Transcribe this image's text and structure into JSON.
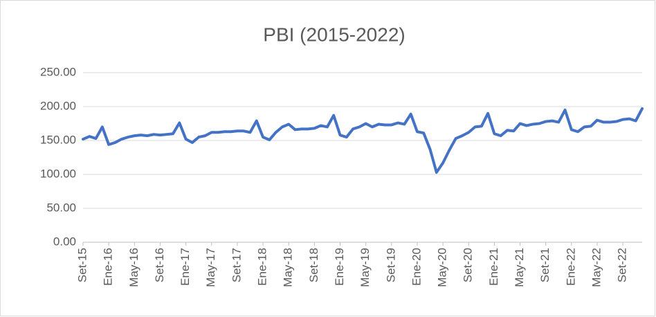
{
  "chart_data": {
    "type": "line",
    "title": "PBI (2015-2022)",
    "categories": [
      "Set-15",
      null,
      null,
      null,
      "Ene-16",
      null,
      null,
      null,
      "May-16",
      null,
      null,
      null,
      "Set-16",
      null,
      null,
      null,
      "Ene-17",
      null,
      null,
      null,
      "May-17",
      null,
      null,
      null,
      "Set-17",
      null,
      null,
      null,
      "Ene-18",
      null,
      null,
      null,
      "May-18",
      null,
      null,
      null,
      "Set-18",
      null,
      null,
      null,
      "Ene-19",
      null,
      null,
      null,
      "May-19",
      null,
      null,
      null,
      "Set-19",
      null,
      null,
      null,
      "Ene-20",
      null,
      null,
      null,
      "May-20",
      null,
      null,
      null,
      "Set-20",
      null,
      null,
      null,
      "Ene-21",
      null,
      null,
      null,
      "May-21",
      null,
      null,
      null,
      "Set-21",
      null,
      null,
      null,
      "Ene-22",
      null,
      null,
      null,
      "May-22",
      null,
      null,
      null,
      "Set-22",
      null,
      null,
      null
    ],
    "values": [
      152,
      156,
      153,
      170,
      144,
      147,
      152,
      155,
      157,
      158,
      157,
      159,
      158,
      159,
      160,
      176,
      152,
      147,
      155,
      157,
      162,
      162,
      163,
      163,
      164,
      164,
      162,
      179,
      155,
      151,
      162,
      170,
      174,
      166,
      167,
      167,
      168,
      172,
      170,
      187,
      158,
      155,
      167,
      170,
      175,
      170,
      174,
      173,
      173,
      176,
      174,
      189,
      163,
      161,
      137,
      103,
      117,
      136,
      153,
      157,
      162,
      170,
      171,
      190,
      160,
      157,
      165,
      164,
      175,
      172,
      174,
      175,
      178,
      179,
      177,
      195,
      166,
      163,
      170,
      171,
      180,
      177,
      177,
      178,
      181,
      182,
      179,
      197
    ],
    "color": "#4472c4",
    "ylim": [
      0,
      250
    ],
    "yticks": [
      {
        "value": 0,
        "label": "0.00"
      },
      {
        "value": 50,
        "label": "50.00"
      },
      {
        "value": 100,
        "label": "100.00"
      },
      {
        "value": 150,
        "label": "150.00"
      },
      {
        "value": 200,
        "label": "200.00"
      },
      {
        "value": 250,
        "label": "250.00"
      }
    ],
    "grid": true
  }
}
